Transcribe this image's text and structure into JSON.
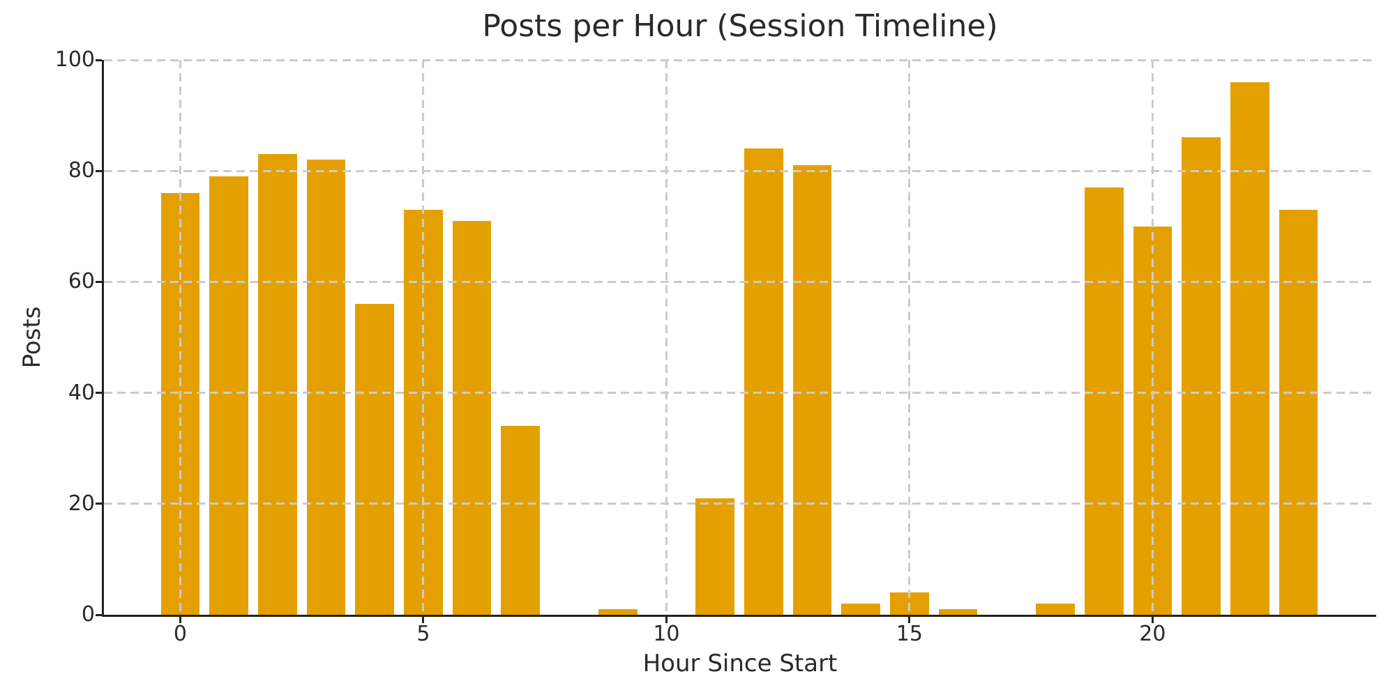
{
  "chart_data": {
    "type": "bar",
    "title": "Posts per Hour (Session Timeline)",
    "xlabel": "Hour Since Start",
    "ylabel": "Posts",
    "categories": [
      0,
      1,
      2,
      3,
      4,
      5,
      6,
      7,
      8,
      9,
      10,
      11,
      12,
      13,
      14,
      15,
      16,
      17,
      18,
      19,
      20,
      21,
      22,
      23
    ],
    "values": [
      76,
      79,
      83,
      82,
      56,
      73,
      71,
      34,
      0,
      1,
      0,
      21,
      84,
      81,
      2,
      4,
      1,
      0,
      2,
      77,
      70,
      86,
      96,
      73
    ],
    "xtick_positions": [
      0,
      5,
      10,
      15,
      20
    ],
    "xtick_labels": [
      "0",
      "5",
      "10",
      "15",
      "20"
    ],
    "ytick_positions": [
      0,
      20,
      40,
      60,
      80,
      100
    ],
    "ytick_labels": [
      "0",
      "20",
      "40",
      "60",
      "80",
      "100"
    ],
    "xlim": [
      -1.57,
      24.6
    ],
    "ylim": [
      0,
      100
    ],
    "bar_width": 0.8,
    "grid": "dashed",
    "legend_position": "none"
  },
  "colors": {
    "bar": "#E4A000",
    "grid": "#CBCBCB",
    "axis": "#222222",
    "text": "#2A2A2A",
    "background": "#FFFFFF"
  }
}
